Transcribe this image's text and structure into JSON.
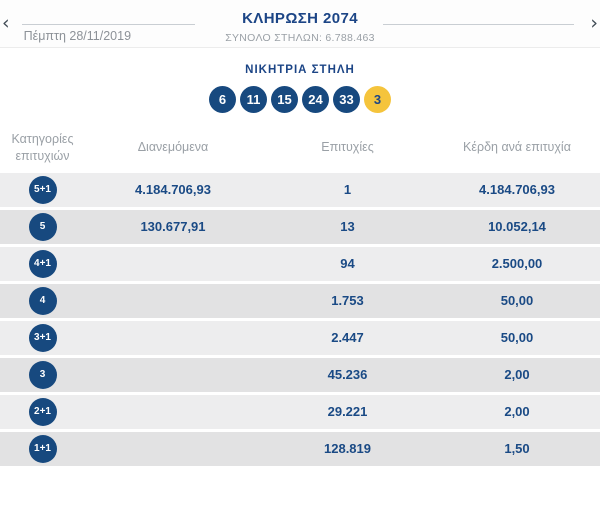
{
  "header": {
    "prev_arrow": "‹",
    "next_arrow": "›",
    "date": "Πέμπτη 28/11/2019",
    "title": "ΚΛΗΡΩΣΗ 2074",
    "subtitle": "ΣΥΝΟΛΟ ΣΤΗΛΩΝ: 6.788.463"
  },
  "winning": {
    "label": "ΝΙΚΗΤΡΙΑ ΣΤΗΛΗ",
    "numbers": {
      "n0": "6",
      "n1": "11",
      "n2": "15",
      "n3": "24",
      "n4": "33"
    },
    "joker": "3"
  },
  "table": {
    "headers": {
      "category_line1": "Κατηγορίες",
      "category_line2": "επιτυχιών",
      "distributed": "Διανεμόμενα",
      "winners": "Επιτυχίες",
      "prize": "Κέρδη ανά επιτυχία"
    },
    "rows": [
      {
        "category": "5+1",
        "distributed": "4.184.706,93",
        "winners": "1",
        "prize": "4.184.706,93"
      },
      {
        "category": "5",
        "distributed": "130.677,91",
        "winners": "13",
        "prize": "10.052,14"
      },
      {
        "category": "4+1",
        "distributed": "",
        "winners": "94",
        "prize": "2.500,00"
      },
      {
        "category": "4",
        "distributed": "",
        "winners": "1.753",
        "prize": "50,00"
      },
      {
        "category": "3+1",
        "distributed": "",
        "winners": "2.447",
        "prize": "50,00"
      },
      {
        "category": "3",
        "distributed": "",
        "winners": "45.236",
        "prize": "2,00"
      },
      {
        "category": "2+1",
        "distributed": "",
        "winners": "29.221",
        "prize": "2,00"
      },
      {
        "category": "1+1",
        "distributed": "",
        "winners": "128.819",
        "prize": "1,50"
      }
    ]
  },
  "colors": {
    "navy": "#1a4a85",
    "badge": "#17497f",
    "yellow": "#f5c43c",
    "gray": "#9aa0a6",
    "dategray": "#8d9298",
    "rowlight": "#ededee",
    "rowdark": "#e2e2e3",
    "line": "#c9ced3"
  }
}
